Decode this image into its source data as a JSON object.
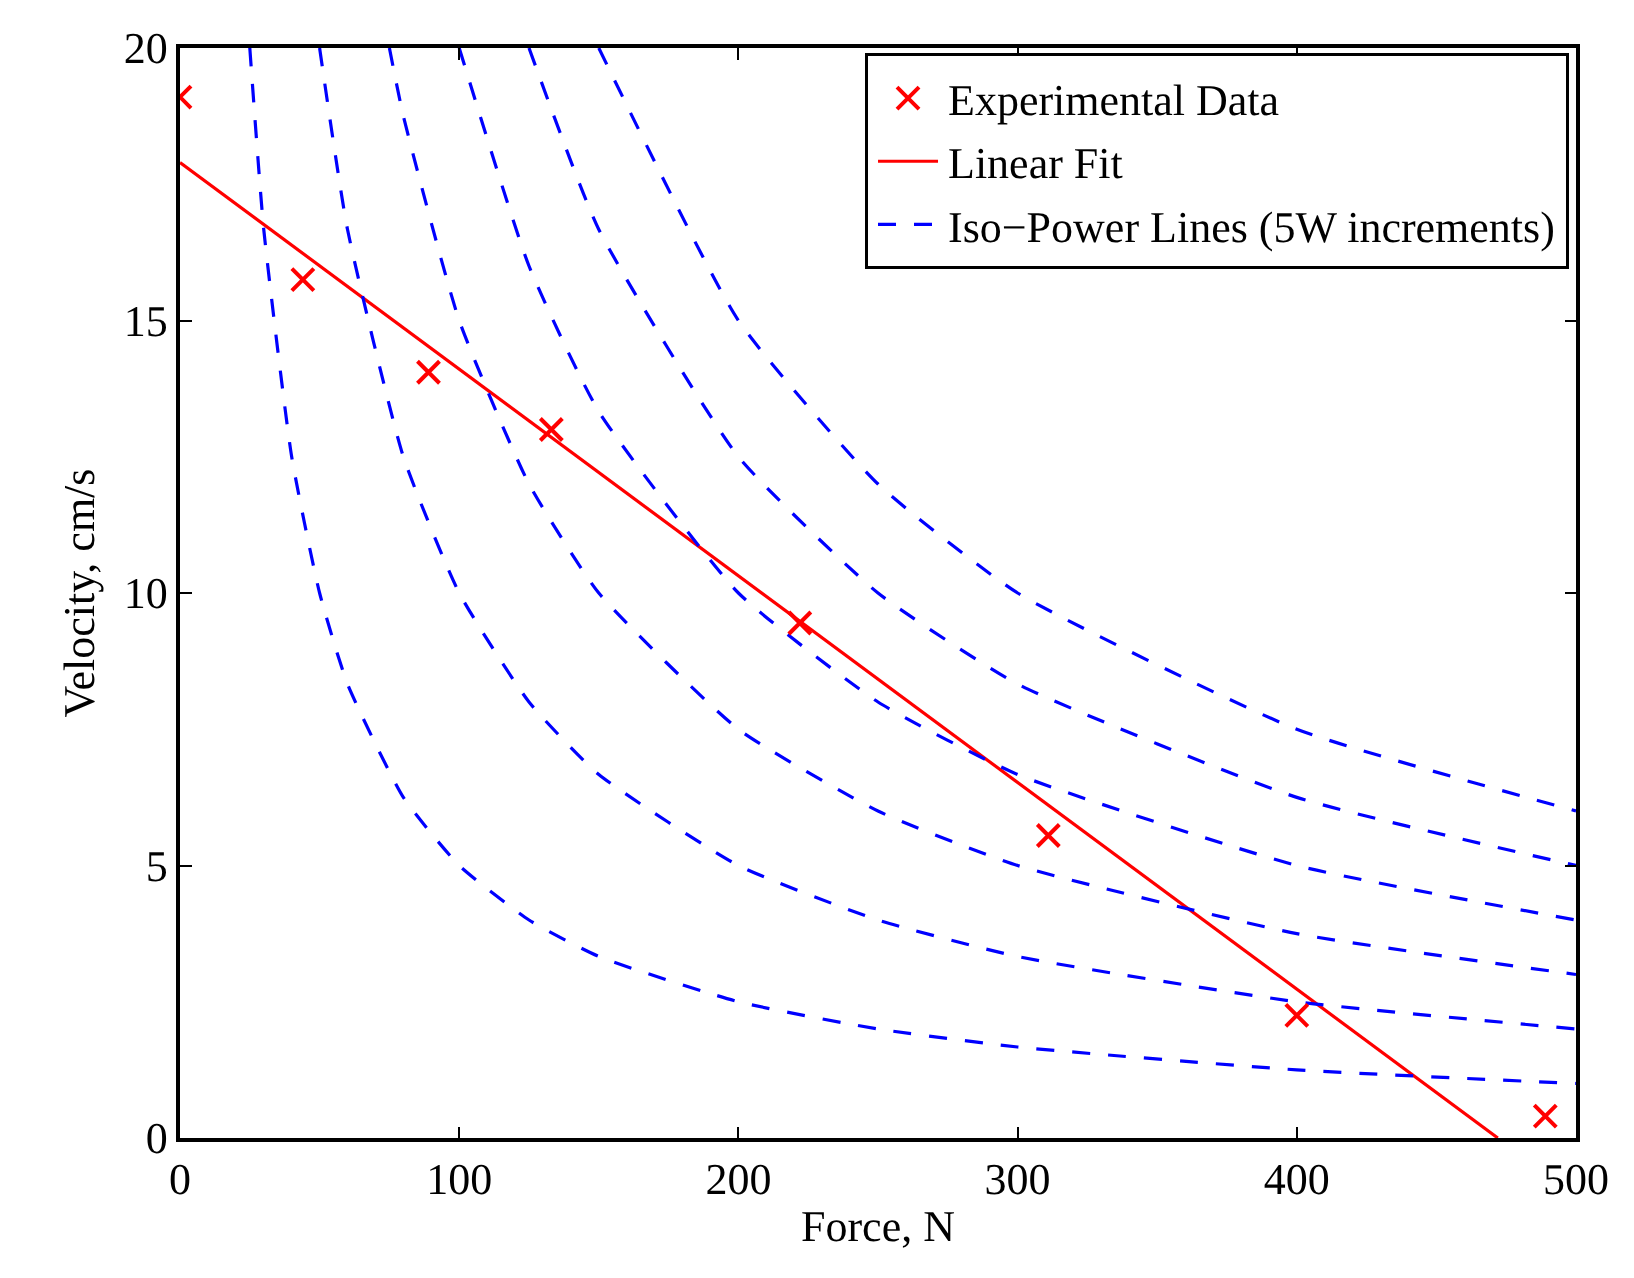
{
  "chart_data": {
    "type": "line",
    "xlabel": "Force, N",
    "ylabel": "Velocity, cm/s",
    "xlim": [
      0,
      500
    ],
    "xticks": [
      0,
      100,
      200,
      300,
      400,
      500
    ],
    "ylim": [
      0,
      20
    ],
    "yticks": [
      0,
      5,
      10,
      15,
      20
    ],
    "legend": "top right",
    "series": [
      {
        "type": "scatter",
        "name": "Experimental Data",
        "color": "#ff0000",
        "marker": "cross",
        "x": [
          0,
          44,
          89,
          133,
          222,
          311,
          400,
          489
        ],
        "values": [
          19.1,
          15.75,
          14.05,
          13.0,
          9.45,
          5.55,
          2.25,
          0.4
        ]
      },
      {
        "name": "Linear Fit",
        "color": "#ff0000",
        "line_style": "solid",
        "marker": "none",
        "x": [
          0,
          472
        ],
        "values": [
          17.9,
          0
        ]
      },
      {
        "name": "Iso−Power Lines (5W increments)",
        "color": "#0000ff",
        "line_style": "dashed",
        "marker": "none",
        "x": [
          25,
          30,
          40,
          50,
          60,
          80,
          100,
          125,
          150,
          200,
          250,
          300,
          400,
          500
        ],
        "values": [
          20,
          16.67,
          12.5,
          10,
          8.33,
          6.25,
          5,
          4,
          3.33,
          2.5,
          2,
          1.67,
          1.25,
          1
        ]
      },
      {
        "color": "#0000ff",
        "line_style": "dashed",
        "marker": "none",
        "x": [
          50,
          60,
          80,
          100,
          125,
          150,
          200,
          250,
          300,
          400,
          500
        ],
        "values": [
          20,
          16.67,
          12.5,
          10,
          8,
          6.67,
          5,
          4,
          3.33,
          2.5,
          2
        ]
      },
      {
        "color": "#0000ff",
        "line_style": "dashed",
        "marker": "none",
        "x": [
          75,
          80,
          100,
          125,
          150,
          200,
          250,
          300,
          400,
          500
        ],
        "values": [
          20,
          18.75,
          15,
          12,
          10,
          7.5,
          6,
          5,
          3.75,
          3
        ]
      },
      {
        "color": "#0000ff",
        "line_style": "dashed",
        "marker": "none",
        "x": [
          100,
          125,
          150,
          200,
          250,
          300,
          400,
          500
        ],
        "values": [
          20,
          16,
          13.33,
          10,
          8,
          6.67,
          5,
          4
        ]
      },
      {
        "color": "#0000ff",
        "line_style": "dashed",
        "marker": "none",
        "x": [
          125,
          150,
          200,
          250,
          300,
          400,
          500
        ],
        "values": [
          20,
          16.67,
          12.5,
          10,
          8.33,
          6.25,
          5
        ]
      },
      {
        "color": "#0000ff",
        "line_style": "dashed",
        "marker": "none",
        "x": [
          150,
          200,
          250,
          300,
          400,
          500
        ],
        "values": [
          20,
          15,
          12,
          10,
          7.5,
          6
        ]
      }
    ]
  }
}
